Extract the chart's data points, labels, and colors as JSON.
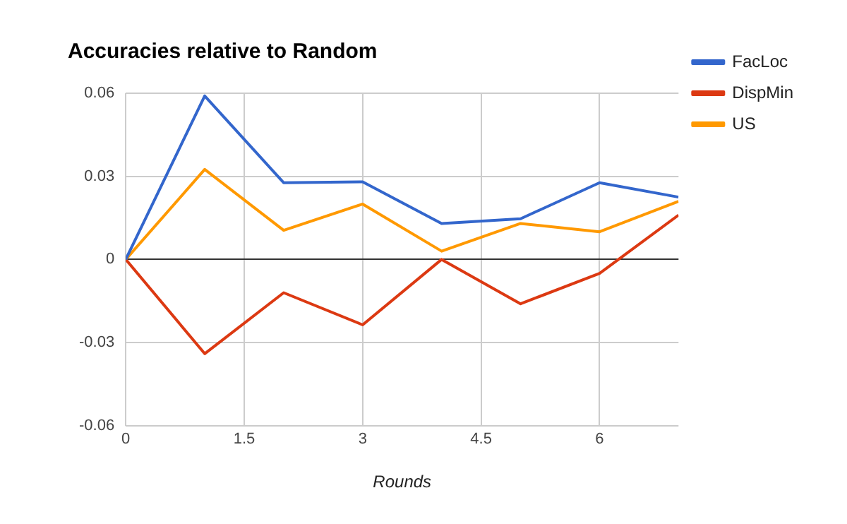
{
  "chart_data": {
    "type": "line",
    "title": "Accuracies relative to Random",
    "xlabel": "Rounds",
    "x": [
      0,
      1,
      2,
      3,
      4,
      5,
      6,
      7
    ],
    "series": [
      {
        "name": "FacLoc",
        "color": "#3366cc",
        "values": [
          0,
          0.059,
          0.0277,
          0.028,
          0.013,
          0.0147,
          0.0277,
          0.0225
        ]
      },
      {
        "name": "DispMin",
        "color": "#dc3912",
        "values": [
          0,
          -0.034,
          -0.012,
          -0.0236,
          0,
          -0.016,
          -0.005,
          0.016
        ]
      },
      {
        "name": "US",
        "color": "#ff9900",
        "values": [
          0,
          0.0325,
          0.0105,
          0.02,
          0.003,
          0.013,
          0.01,
          0.021
        ]
      }
    ],
    "xlim": [
      0,
      7
    ],
    "xticks": [
      0,
      1.5,
      3,
      4.5,
      6
    ],
    "ylim": [
      -0.06,
      0.06
    ],
    "yticks": [
      0.06,
      0.03,
      0,
      -0.03,
      -0.06
    ],
    "grid": true,
    "legend": "top right",
    "marker": "none",
    "line_style": "solid"
  }
}
